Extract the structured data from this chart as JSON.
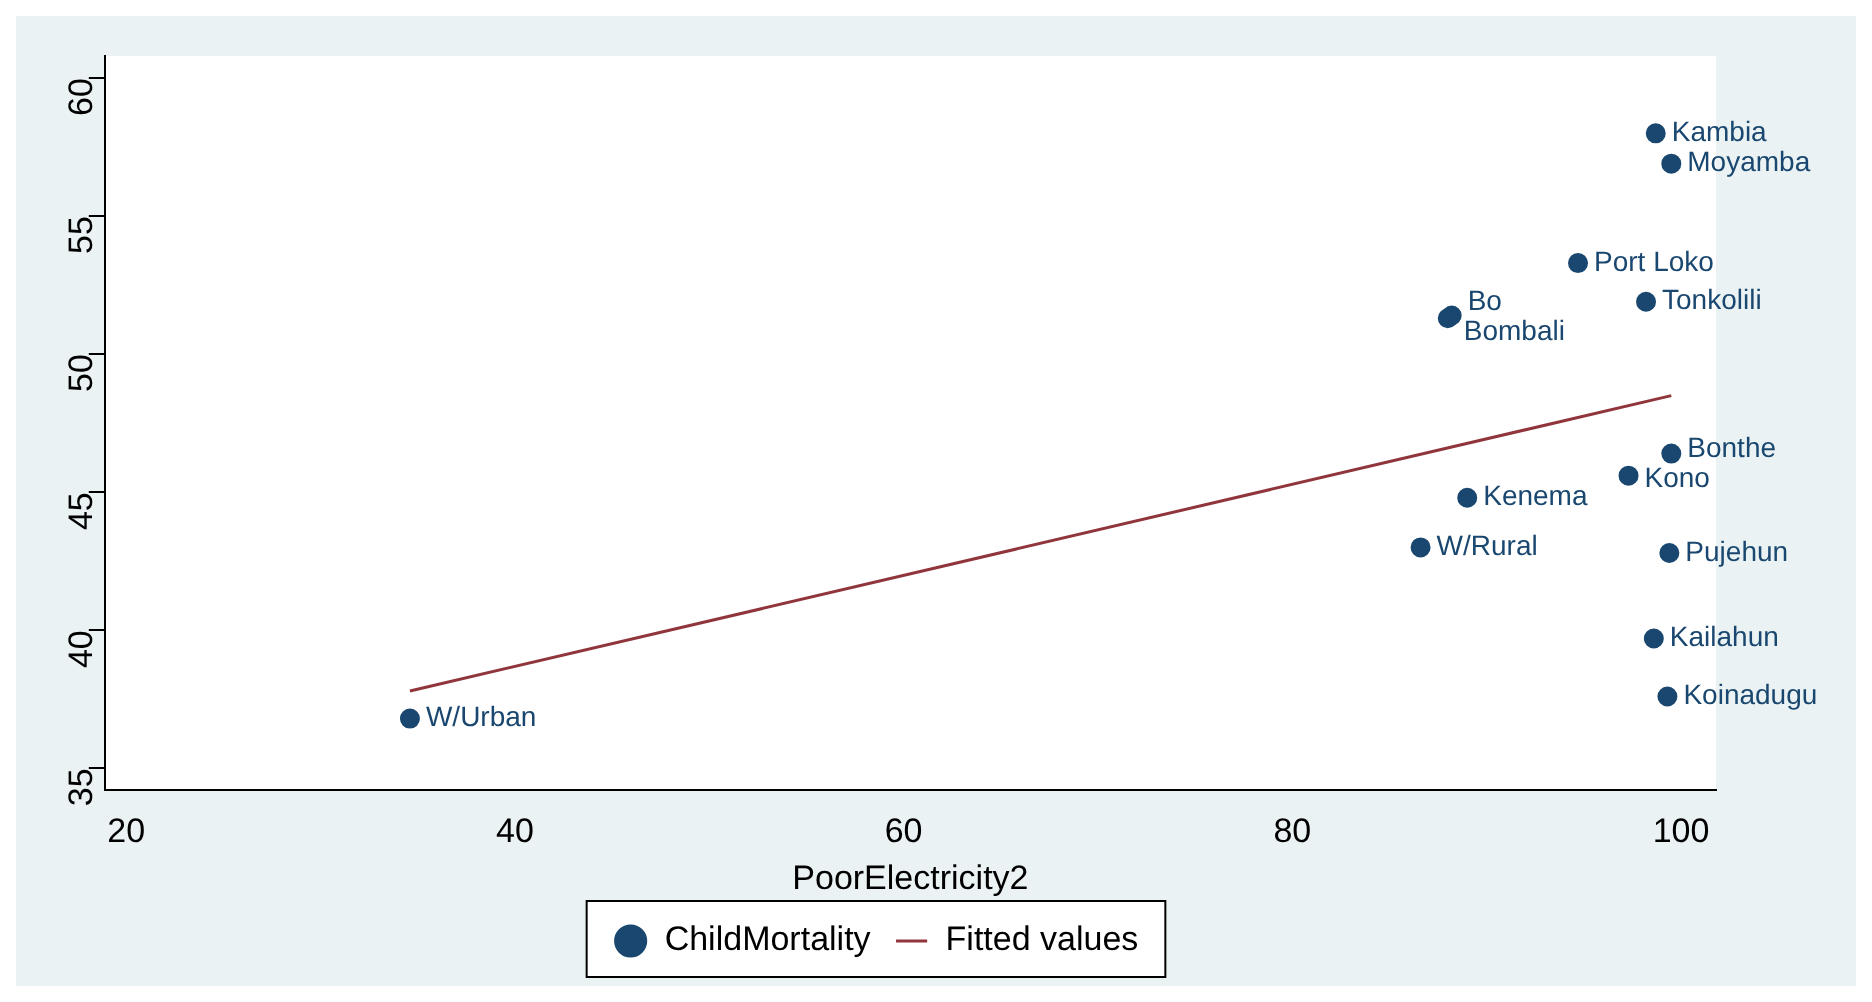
{
  "chart_data": {
    "type": "scatter",
    "xlabel": "PoorElectricity2",
    "xlim": [
      18.9,
      101.8
    ],
    "xticks": [
      20,
      40,
      60,
      80,
      100
    ],
    "ylim": [
      34.2,
      60.8
    ],
    "yticks": [
      35,
      40,
      45,
      50,
      55,
      60
    ],
    "legend": "bottom",
    "series": [
      {
        "name": "ChildMortality",
        "marker": "circle",
        "color": "#1a476f",
        "x": [
          98.7,
          99.5,
          94.7,
          98.2,
          88.2,
          88.0,
          99.5,
          97.3,
          89.0,
          86.6,
          99.4,
          98.6,
          99.3,
          34.6
        ],
        "values": [
          58.0,
          56.9,
          53.3,
          51.9,
          51.4,
          51.3,
          46.4,
          45.6,
          44.8,
          43.0,
          42.8,
          39.7,
          37.6,
          36.8
        ]
      },
      {
        "name": "Fitted values",
        "type": "line",
        "color": "#90353b",
        "x": [
          34.6,
          99.5
        ],
        "values": [
          37.8,
          48.5
        ]
      }
    ],
    "annotations": [
      {
        "text": "Kambia",
        "x": 98.7,
        "y": 58.0
      },
      {
        "text": "Moyamba",
        "x": 99.5,
        "y": 56.9
      },
      {
        "text": "Port Loko",
        "x": 94.7,
        "y": 53.3
      },
      {
        "text": "Tonkolili",
        "x": 98.2,
        "y": 51.9
      },
      {
        "text": "Bo",
        "x": 88.2,
        "y": 51.4
      },
      {
        "text": "Bombali",
        "x": 88.0,
        "y": 51.3
      },
      {
        "text": "Bonthe",
        "x": 99.5,
        "y": 46.4
      },
      {
        "text": "Kono",
        "x": 97.3,
        "y": 45.6
      },
      {
        "text": "Kenema",
        "x": 89.0,
        "y": 44.8
      },
      {
        "text": "W/Rural",
        "x": 86.6,
        "y": 43.0
      },
      {
        "text": "Pujehun",
        "x": 99.4,
        "y": 42.8
      },
      {
        "text": "Kailahun",
        "x": 98.6,
        "y": 39.7
      },
      {
        "text": "Koinadugu",
        "x": 99.3,
        "y": 37.6
      },
      {
        "text": "W/Urban",
        "x": 34.6,
        "y": 36.8
      }
    ]
  }
}
